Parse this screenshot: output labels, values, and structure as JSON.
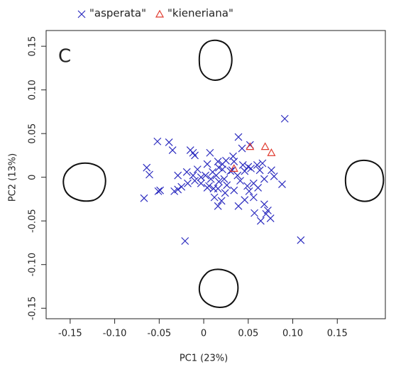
{
  "chart_data": {
    "type": "scatter",
    "annotation": "C",
    "x_label": "PC1 (23%)",
    "y_label": "PC2 (13%)",
    "xlim": [
      -0.177,
      0.204
    ],
    "ylim": [
      -0.162,
      0.168
    ],
    "xticks": [
      -0.15,
      {
        "value": -0.1,
        "label": "-0.10"
      },
      -0.05,
      0,
      0.05,
      {
        "value": 0.1,
        "label": "0.10"
      },
      0.15
    ],
    "yticks": [
      -0.15,
      {
        "value": -0.1,
        "label": "-0.10"
      },
      -0.05,
      0,
      0.05,
      {
        "value": 0.1,
        "label": "0.10"
      },
      0.15
    ],
    "legend_position": "top",
    "series": [
      {
        "name": "\"asperata\"",
        "color": "#2b2bbf",
        "marker": "x",
        "x": [
          0.091,
          -0.052,
          -0.039,
          -0.035,
          -0.015,
          -0.012,
          -0.01,
          0.007,
          0.039,
          0.052,
          0.043,
          0.033,
          -0.064,
          -0.061,
          -0.019,
          -0.029,
          -0.012,
          -0.007,
          0.004,
          0.016,
          0.021,
          0.025,
          0.034,
          0.044,
          0.05,
          0.06,
          0.066,
          0.076,
          0.079,
          0.068,
          0.053,
          0.046,
          0.038,
          0.032,
          0.021,
          0.017,
          0.01,
          0.008,
          0.002,
          -0.003,
          -0.01,
          -0.018,
          -0.025,
          -0.029,
          -0.033,
          -0.049,
          -0.051,
          -0.067,
          -0.003,
          0.006,
          0.011,
          0.017,
          0.023,
          0.026,
          0.034,
          0.041,
          0.049,
          0.051,
          0.056,
          0.061,
          0.016,
          0.012,
          0.004,
          0.02,
          0.016,
          0.039,
          0.046,
          0.056,
          0.068,
          0.072,
          0.07,
          0.075,
          0.064,
          0.057,
          0.088,
          -0.021,
          0.109,
          0.014,
          0.03,
          0.063,
          0.024
        ],
        "y": [
          0.067,
          0.041,
          0.04,
          0.031,
          0.031,
          0.028,
          0.025,
          0.028,
          0.046,
          0.037,
          0.033,
          0.024,
          0.011,
          0.003,
          0.006,
          0.002,
          0.002,
          0.009,
          0.015,
          0.018,
          0.015,
          0.019,
          0.018,
          0.014,
          0.012,
          0.014,
          0.016,
          0.008,
          0.001,
          -0.002,
          0.01,
          0.007,
          0.002,
          0.008,
          0.009,
          0.011,
          0.006,
          -0.002,
          0.002,
          0,
          -0.004,
          -0.007,
          -0.011,
          -0.014,
          -0.016,
          -0.015,
          -0.016,
          -0.024,
          -0.007,
          -0.01,
          -0.013,
          -0.005,
          -0.002,
          -0.009,
          -0.015,
          -0.004,
          -0.01,
          -0.016,
          -0.007,
          -0.012,
          -0.013,
          -0.023,
          -0.012,
          -0.027,
          -0.033,
          -0.033,
          -0.026,
          -0.023,
          -0.031,
          -0.038,
          -0.042,
          -0.047,
          -0.05,
          -0.041,
          -0.008,
          -0.073,
          -0.072,
          0.002,
          0.007,
          0.008,
          -0.018
        ]
      },
      {
        "name": "\"kieneriana\"",
        "color": "#e03a2e",
        "marker": "triangle",
        "x": [
          0.052,
          0.069,
          0.076,
          0.034
        ],
        "y": [
          0.035,
          0.035,
          0.028,
          0.01
        ]
      }
    ]
  }
}
